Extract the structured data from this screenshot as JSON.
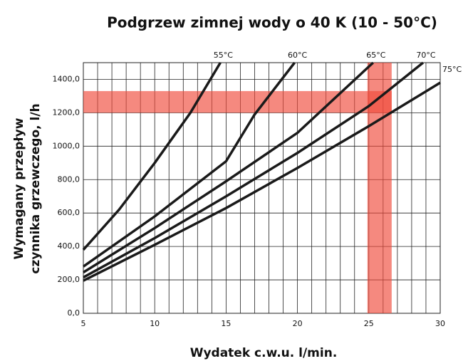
{
  "chart_data": {
    "type": "line",
    "title": "Podgrzew zimnej wody o 40 K (10 - 50°C)",
    "xlabel": "Wydatek c.w.u. l/min.",
    "ylabel": [
      "Wymagany przepływ",
      "czynnika grzewczego, l/h"
    ],
    "xlim": [
      5,
      30
    ],
    "ylim": [
      0,
      1500
    ],
    "xticks": [
      5,
      10,
      15,
      20,
      25,
      30
    ],
    "x_minor_grid": [
      6,
      7,
      8,
      9,
      11,
      12,
      13,
      14,
      16,
      17,
      18,
      19,
      21,
      22,
      23,
      24,
      26,
      27,
      28,
      29
    ],
    "yticks": [
      {
        "value": 0,
        "label": "0,0"
      },
      {
        "value": 200,
        "label": "200,0"
      },
      {
        "value": 400,
        "label": "400,0"
      },
      {
        "value": 600,
        "label": "600,0"
      },
      {
        "value": 800,
        "label": "800,0"
      },
      {
        "value": 1000,
        "label": "1000,0"
      },
      {
        "value": 1200,
        "label": "1200,0"
      },
      {
        "value": 1400,
        "label": "1400,0"
      }
    ],
    "grid": true,
    "highlight_color": "#f04a3a",
    "highlight_y": [
      1200,
      1330
    ],
    "highlight_x": [
      24.9,
      26.6
    ],
    "series": [
      {
        "name": "55°C",
        "color": "#1a1a1a",
        "x": [
          5,
          7.5,
          10,
          12.5,
          14.6
        ],
        "values": [
          380,
          620,
          900,
          1200,
          1500
        ]
      },
      {
        "name": "60°C",
        "color": "#1a1a1a",
        "x": [
          5,
          10,
          15,
          17,
          19.8
        ],
        "values": [
          280,
          580,
          910,
          1190,
          1500
        ]
      },
      {
        "name": "65°C",
        "color": "#1a1a1a",
        "x": [
          5,
          10,
          15,
          20,
          25.3
        ],
        "values": [
          245,
          510,
          790,
          1080,
          1500
        ]
      },
      {
        "name": "70°C",
        "color": "#1a1a1a",
        "x": [
          5,
          10,
          15,
          20,
          25,
          28.8
        ],
        "values": [
          215,
          450,
          700,
          960,
          1240,
          1500
        ]
      },
      {
        "name": "75°C",
        "color": "#1a1a1a",
        "x": [
          5,
          10,
          15,
          20,
          25,
          30
        ],
        "values": [
          195,
          410,
          630,
          870,
          1120,
          1380
        ]
      }
    ]
  }
}
